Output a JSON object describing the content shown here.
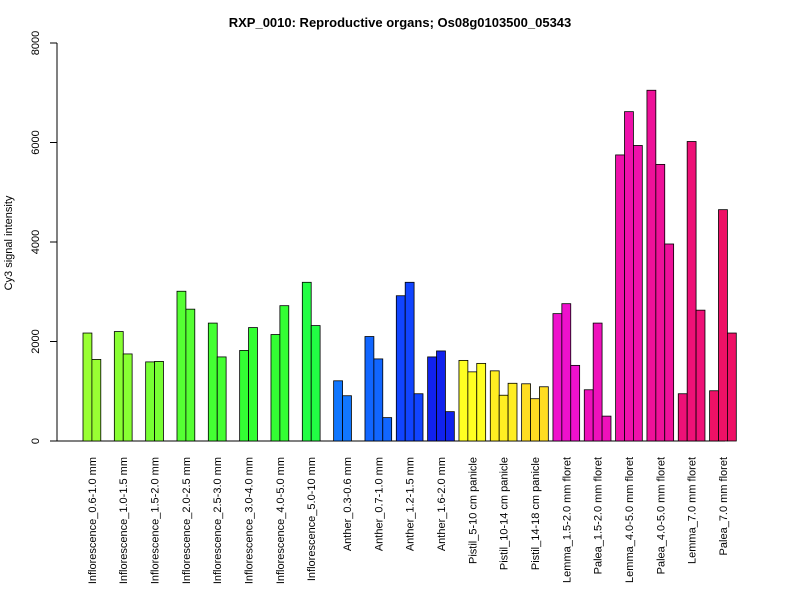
{
  "chart_data": {
    "type": "bar",
    "title": "RXP_0010: Reproductive organs; Os08g0103500_05343",
    "xlabel": "",
    "ylabel": "Cy3 signal intensity",
    "ylim": [
      0,
      8000
    ],
    "yticks": [
      0,
      2000,
      4000,
      6000,
      8000
    ],
    "ytick_labels": [
      "0",
      "2000",
      "4000",
      "6000",
      "8000"
    ],
    "grid": false,
    "legend": "none",
    "categories": [
      "Inflorescence_0.6-1.0 mm",
      "Inflorescence_1.0-1.5 mm",
      "Inflorescence_1.5-2.0 mm",
      "Inflorescence_2.0-2.5 mm",
      "Inflorescence_2.5-3.0 mm",
      "Inflorescence_3.0-4.0 mm",
      "Inflorescence_4.0-5.0 mm",
      "Inflorescence_5.0-10 mm",
      "Anther_0.3-0.6 mm",
      "Anther_0.7-1.0 mm",
      "Anther_1.2-1.5 mm",
      "Anther_1.6-2.0 mm",
      "Pistil_5-10 cm panicle",
      "Pistil_10-14 cm panicle",
      "Pistil_14-18 cm panicle",
      "Lemma_1.5-2.0 mm floret",
      "Palea_1.5-2.0 mm floret",
      "Lemma_4.0-5.0 mm floret",
      "Palea_4.0-5.0 mm floret",
      "Lemma_7.0 mm floret",
      "Palea_7.0 mm floret"
    ],
    "groups": [
      {
        "color": "#99ff33",
        "values": [
          2170,
          1640
        ]
      },
      {
        "color": "#88ff33",
        "values": [
          2200,
          1750
        ]
      },
      {
        "color": "#77ff33",
        "values": [
          1590,
          1600
        ]
      },
      {
        "color": "#55ff33",
        "values": [
          3010,
          2650
        ]
      },
      {
        "color": "#44ff33",
        "values": [
          2370,
          1690
        ]
      },
      {
        "color": "#33ff33",
        "values": [
          1820,
          2280
        ]
      },
      {
        "color": "#33ff33",
        "values": [
          2140,
          2720
        ]
      },
      {
        "color": "#22ff44",
        "values": [
          3190,
          2320
        ]
      },
      {
        "color": "#1177ff",
        "values": [
          1210,
          910,
          null
        ]
      },
      {
        "color": "#1166ff",
        "values": [
          2100,
          1650,
          470
        ]
      },
      {
        "color": "#1144ff",
        "values": [
          2920,
          3190,
          950
        ]
      },
      {
        "color": "#1122ee",
        "values": [
          1690,
          1810,
          590
        ]
      },
      {
        "color": "#ffff22",
        "values": [
          1620,
          1390,
          1560
        ]
      },
      {
        "color": "#ffee22",
        "values": [
          1410,
          920,
          1160
        ]
      },
      {
        "color": "#ffdd22",
        "values": [
          1150,
          850,
          1090
        ]
      },
      {
        "color": "#ee11cc",
        "values": [
          2560,
          2760,
          1520
        ]
      },
      {
        "color": "#ee11bb",
        "values": [
          1030,
          2370,
          500
        ]
      },
      {
        "color": "#ee11aa",
        "values": [
          5750,
          6620,
          5940
        ]
      },
      {
        "color": "#ee1199",
        "values": [
          7050,
          5560,
          3960
        ]
      },
      {
        "color": "#ee1177",
        "values": [
          950,
          6020,
          2630
        ]
      },
      {
        "color": "#ee1166",
        "values": [
          1010,
          4650,
          2170
        ]
      }
    ]
  }
}
